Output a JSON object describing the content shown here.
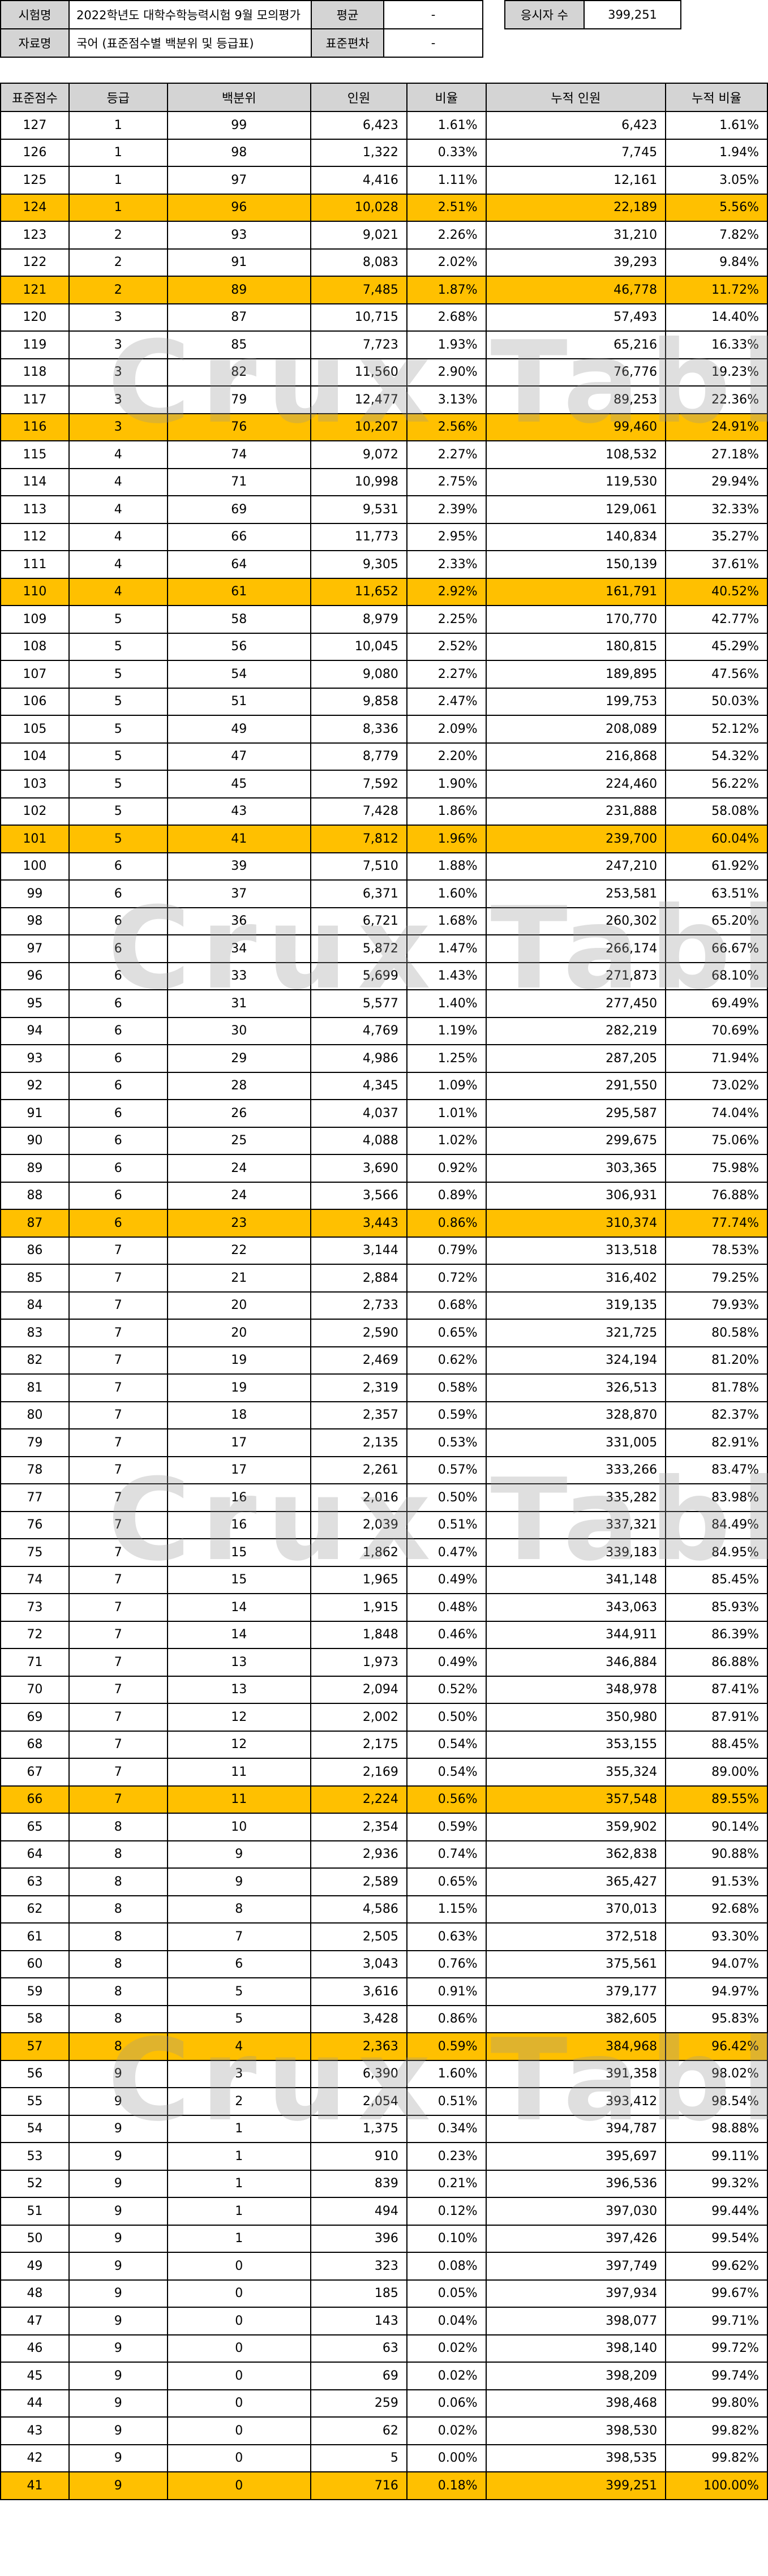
{
  "info": {
    "exam_label": "시험명",
    "exam_name": "2022학년도 대학수학능력시험 9월 모의평가",
    "mean_label": "평균",
    "mean_value": "-",
    "examinees_label": "응시자 수",
    "examinees_value": "399,251",
    "data_label": "자료명",
    "data_name": "국어 (표준점수별 백분위 및 등급표)",
    "sd_label": "표준편차",
    "sd_value": "-"
  },
  "table": {
    "headers": [
      "표준점수",
      "등급",
      "백분위",
      "인원",
      "비율",
      "누적 인원",
      "누적 비율"
    ],
    "rows": [
      {
        "s": "127",
        "g": "1",
        "p": "99",
        "n": "6,423",
        "r": "1.61%",
        "cn": "6,423",
        "cr": "1.61%",
        "hl": false
      },
      {
        "s": "126",
        "g": "1",
        "p": "98",
        "n": "1,322",
        "r": "0.33%",
        "cn": "7,745",
        "cr": "1.94%",
        "hl": false
      },
      {
        "s": "125",
        "g": "1",
        "p": "97",
        "n": "4,416",
        "r": "1.11%",
        "cn": "12,161",
        "cr": "3.05%",
        "hl": false
      },
      {
        "s": "124",
        "g": "1",
        "p": "96",
        "n": "10,028",
        "r": "2.51%",
        "cn": "22,189",
        "cr": "5.56%",
        "hl": true
      },
      {
        "s": "123",
        "g": "2",
        "p": "93",
        "n": "9,021",
        "r": "2.26%",
        "cn": "31,210",
        "cr": "7.82%",
        "hl": false
      },
      {
        "s": "122",
        "g": "2",
        "p": "91",
        "n": "8,083",
        "r": "2.02%",
        "cn": "39,293",
        "cr": "9.84%",
        "hl": false
      },
      {
        "s": "121",
        "g": "2",
        "p": "89",
        "n": "7,485",
        "r": "1.87%",
        "cn": "46,778",
        "cr": "11.72%",
        "hl": true
      },
      {
        "s": "120",
        "g": "3",
        "p": "87",
        "n": "10,715",
        "r": "2.68%",
        "cn": "57,493",
        "cr": "14.40%",
        "hl": false
      },
      {
        "s": "119",
        "g": "3",
        "p": "85",
        "n": "7,723",
        "r": "1.93%",
        "cn": "65,216",
        "cr": "16.33%",
        "hl": false
      },
      {
        "s": "118",
        "g": "3",
        "p": "82",
        "n": "11,560",
        "r": "2.90%",
        "cn": "76,776",
        "cr": "19.23%",
        "hl": false
      },
      {
        "s": "117",
        "g": "3",
        "p": "79",
        "n": "12,477",
        "r": "3.13%",
        "cn": "89,253",
        "cr": "22.36%",
        "hl": false
      },
      {
        "s": "116",
        "g": "3",
        "p": "76",
        "n": "10,207",
        "r": "2.56%",
        "cn": "99,460",
        "cr": "24.91%",
        "hl": true
      },
      {
        "s": "115",
        "g": "4",
        "p": "74",
        "n": "9,072",
        "r": "2.27%",
        "cn": "108,532",
        "cr": "27.18%",
        "hl": false
      },
      {
        "s": "114",
        "g": "4",
        "p": "71",
        "n": "10,998",
        "r": "2.75%",
        "cn": "119,530",
        "cr": "29.94%",
        "hl": false
      },
      {
        "s": "113",
        "g": "4",
        "p": "69",
        "n": "9,531",
        "r": "2.39%",
        "cn": "129,061",
        "cr": "32.33%",
        "hl": false
      },
      {
        "s": "112",
        "g": "4",
        "p": "66",
        "n": "11,773",
        "r": "2.95%",
        "cn": "140,834",
        "cr": "35.27%",
        "hl": false
      },
      {
        "s": "111",
        "g": "4",
        "p": "64",
        "n": "9,305",
        "r": "2.33%",
        "cn": "150,139",
        "cr": "37.61%",
        "hl": false
      },
      {
        "s": "110",
        "g": "4",
        "p": "61",
        "n": "11,652",
        "r": "2.92%",
        "cn": "161,791",
        "cr": "40.52%",
        "hl": true
      },
      {
        "s": "109",
        "g": "5",
        "p": "58",
        "n": "8,979",
        "r": "2.25%",
        "cn": "170,770",
        "cr": "42.77%",
        "hl": false
      },
      {
        "s": "108",
        "g": "5",
        "p": "56",
        "n": "10,045",
        "r": "2.52%",
        "cn": "180,815",
        "cr": "45.29%",
        "hl": false
      },
      {
        "s": "107",
        "g": "5",
        "p": "54",
        "n": "9,080",
        "r": "2.27%",
        "cn": "189,895",
        "cr": "47.56%",
        "hl": false
      },
      {
        "s": "106",
        "g": "5",
        "p": "51",
        "n": "9,858",
        "r": "2.47%",
        "cn": "199,753",
        "cr": "50.03%",
        "hl": false
      },
      {
        "s": "105",
        "g": "5",
        "p": "49",
        "n": "8,336",
        "r": "2.09%",
        "cn": "208,089",
        "cr": "52.12%",
        "hl": false
      },
      {
        "s": "104",
        "g": "5",
        "p": "47",
        "n": "8,779",
        "r": "2.20%",
        "cn": "216,868",
        "cr": "54.32%",
        "hl": false
      },
      {
        "s": "103",
        "g": "5",
        "p": "45",
        "n": "7,592",
        "r": "1.90%",
        "cn": "224,460",
        "cr": "56.22%",
        "hl": false
      },
      {
        "s": "102",
        "g": "5",
        "p": "43",
        "n": "7,428",
        "r": "1.86%",
        "cn": "231,888",
        "cr": "58.08%",
        "hl": false
      },
      {
        "s": "101",
        "g": "5",
        "p": "41",
        "n": "7,812",
        "r": "1.96%",
        "cn": "239,700",
        "cr": "60.04%",
        "hl": true
      },
      {
        "s": "100",
        "g": "6",
        "p": "39",
        "n": "7,510",
        "r": "1.88%",
        "cn": "247,210",
        "cr": "61.92%",
        "hl": false
      },
      {
        "s": "99",
        "g": "6",
        "p": "37",
        "n": "6,371",
        "r": "1.60%",
        "cn": "253,581",
        "cr": "63.51%",
        "hl": false
      },
      {
        "s": "98",
        "g": "6",
        "p": "36",
        "n": "6,721",
        "r": "1.68%",
        "cn": "260,302",
        "cr": "65.20%",
        "hl": false
      },
      {
        "s": "97",
        "g": "6",
        "p": "34",
        "n": "5,872",
        "r": "1.47%",
        "cn": "266,174",
        "cr": "66.67%",
        "hl": false
      },
      {
        "s": "96",
        "g": "6",
        "p": "33",
        "n": "5,699",
        "r": "1.43%",
        "cn": "271,873",
        "cr": "68.10%",
        "hl": false
      },
      {
        "s": "95",
        "g": "6",
        "p": "31",
        "n": "5,577",
        "r": "1.40%",
        "cn": "277,450",
        "cr": "69.49%",
        "hl": false
      },
      {
        "s": "94",
        "g": "6",
        "p": "30",
        "n": "4,769",
        "r": "1.19%",
        "cn": "282,219",
        "cr": "70.69%",
        "hl": false
      },
      {
        "s": "93",
        "g": "6",
        "p": "29",
        "n": "4,986",
        "r": "1.25%",
        "cn": "287,205",
        "cr": "71.94%",
        "hl": false
      },
      {
        "s": "92",
        "g": "6",
        "p": "28",
        "n": "4,345",
        "r": "1.09%",
        "cn": "291,550",
        "cr": "73.02%",
        "hl": false
      },
      {
        "s": "91",
        "g": "6",
        "p": "26",
        "n": "4,037",
        "r": "1.01%",
        "cn": "295,587",
        "cr": "74.04%",
        "hl": false
      },
      {
        "s": "90",
        "g": "6",
        "p": "25",
        "n": "4,088",
        "r": "1.02%",
        "cn": "299,675",
        "cr": "75.06%",
        "hl": false
      },
      {
        "s": "89",
        "g": "6",
        "p": "24",
        "n": "3,690",
        "r": "0.92%",
        "cn": "303,365",
        "cr": "75.98%",
        "hl": false
      },
      {
        "s": "88",
        "g": "6",
        "p": "24",
        "n": "3,566",
        "r": "0.89%",
        "cn": "306,931",
        "cr": "76.88%",
        "hl": false
      },
      {
        "s": "87",
        "g": "6",
        "p": "23",
        "n": "3,443",
        "r": "0.86%",
        "cn": "310,374",
        "cr": "77.74%",
        "hl": true
      },
      {
        "s": "86",
        "g": "7",
        "p": "22",
        "n": "3,144",
        "r": "0.79%",
        "cn": "313,518",
        "cr": "78.53%",
        "hl": false
      },
      {
        "s": "85",
        "g": "7",
        "p": "21",
        "n": "2,884",
        "r": "0.72%",
        "cn": "316,402",
        "cr": "79.25%",
        "hl": false
      },
      {
        "s": "84",
        "g": "7",
        "p": "20",
        "n": "2,733",
        "r": "0.68%",
        "cn": "319,135",
        "cr": "79.93%",
        "hl": false
      },
      {
        "s": "83",
        "g": "7",
        "p": "20",
        "n": "2,590",
        "r": "0.65%",
        "cn": "321,725",
        "cr": "80.58%",
        "hl": false
      },
      {
        "s": "82",
        "g": "7",
        "p": "19",
        "n": "2,469",
        "r": "0.62%",
        "cn": "324,194",
        "cr": "81.20%",
        "hl": false
      },
      {
        "s": "81",
        "g": "7",
        "p": "19",
        "n": "2,319",
        "r": "0.58%",
        "cn": "326,513",
        "cr": "81.78%",
        "hl": false
      },
      {
        "s": "80",
        "g": "7",
        "p": "18",
        "n": "2,357",
        "r": "0.59%",
        "cn": "328,870",
        "cr": "82.37%",
        "hl": false
      },
      {
        "s": "79",
        "g": "7",
        "p": "17",
        "n": "2,135",
        "r": "0.53%",
        "cn": "331,005",
        "cr": "82.91%",
        "hl": false
      },
      {
        "s": "78",
        "g": "7",
        "p": "17",
        "n": "2,261",
        "r": "0.57%",
        "cn": "333,266",
        "cr": "83.47%",
        "hl": false
      },
      {
        "s": "77",
        "g": "7",
        "p": "16",
        "n": "2,016",
        "r": "0.50%",
        "cn": "335,282",
        "cr": "83.98%",
        "hl": false
      },
      {
        "s": "76",
        "g": "7",
        "p": "16",
        "n": "2,039",
        "r": "0.51%",
        "cn": "337,321",
        "cr": "84.49%",
        "hl": false
      },
      {
        "s": "75",
        "g": "7",
        "p": "15",
        "n": "1,862",
        "r": "0.47%",
        "cn": "339,183",
        "cr": "84.95%",
        "hl": false
      },
      {
        "s": "74",
        "g": "7",
        "p": "15",
        "n": "1,965",
        "r": "0.49%",
        "cn": "341,148",
        "cr": "85.45%",
        "hl": false
      },
      {
        "s": "73",
        "g": "7",
        "p": "14",
        "n": "1,915",
        "r": "0.48%",
        "cn": "343,063",
        "cr": "85.93%",
        "hl": false
      },
      {
        "s": "72",
        "g": "7",
        "p": "14",
        "n": "1,848",
        "r": "0.46%",
        "cn": "344,911",
        "cr": "86.39%",
        "hl": false
      },
      {
        "s": "71",
        "g": "7",
        "p": "13",
        "n": "1,973",
        "r": "0.49%",
        "cn": "346,884",
        "cr": "86.88%",
        "hl": false
      },
      {
        "s": "70",
        "g": "7",
        "p": "13",
        "n": "2,094",
        "r": "0.52%",
        "cn": "348,978",
        "cr": "87.41%",
        "hl": false
      },
      {
        "s": "69",
        "g": "7",
        "p": "12",
        "n": "2,002",
        "r": "0.50%",
        "cn": "350,980",
        "cr": "87.91%",
        "hl": false
      },
      {
        "s": "68",
        "g": "7",
        "p": "12",
        "n": "2,175",
        "r": "0.54%",
        "cn": "353,155",
        "cr": "88.45%",
        "hl": false
      },
      {
        "s": "67",
        "g": "7",
        "p": "11",
        "n": "2,169",
        "r": "0.54%",
        "cn": "355,324",
        "cr": "89.00%",
        "hl": false
      },
      {
        "s": "66",
        "g": "7",
        "p": "11",
        "n": "2,224",
        "r": "0.56%",
        "cn": "357,548",
        "cr": "89.55%",
        "hl": true
      },
      {
        "s": "65",
        "g": "8",
        "p": "10",
        "n": "2,354",
        "r": "0.59%",
        "cn": "359,902",
        "cr": "90.14%",
        "hl": false
      },
      {
        "s": "64",
        "g": "8",
        "p": "9",
        "n": "2,936",
        "r": "0.74%",
        "cn": "362,838",
        "cr": "90.88%",
        "hl": false
      },
      {
        "s": "63",
        "g": "8",
        "p": "9",
        "n": "2,589",
        "r": "0.65%",
        "cn": "365,427",
        "cr": "91.53%",
        "hl": false
      },
      {
        "s": "62",
        "g": "8",
        "p": "8",
        "n": "4,586",
        "r": "1.15%",
        "cn": "370,013",
        "cr": "92.68%",
        "hl": false
      },
      {
        "s": "61",
        "g": "8",
        "p": "7",
        "n": "2,505",
        "r": "0.63%",
        "cn": "372,518",
        "cr": "93.30%",
        "hl": false
      },
      {
        "s": "60",
        "g": "8",
        "p": "6",
        "n": "3,043",
        "r": "0.76%",
        "cn": "375,561",
        "cr": "94.07%",
        "hl": false
      },
      {
        "s": "59",
        "g": "8",
        "p": "5",
        "n": "3,616",
        "r": "0.91%",
        "cn": "379,177",
        "cr": "94.97%",
        "hl": false
      },
      {
        "s": "58",
        "g": "8",
        "p": "5",
        "n": "3,428",
        "r": "0.86%",
        "cn": "382,605",
        "cr": "95.83%",
        "hl": false
      },
      {
        "s": "57",
        "g": "8",
        "p": "4",
        "n": "2,363",
        "r": "0.59%",
        "cn": "384,968",
        "cr": "96.42%",
        "hl": true
      },
      {
        "s": "56",
        "g": "9",
        "p": "3",
        "n": "6,390",
        "r": "1.60%",
        "cn": "391,358",
        "cr": "98.02%",
        "hl": false
      },
      {
        "s": "55",
        "g": "9",
        "p": "2",
        "n": "2,054",
        "r": "0.51%",
        "cn": "393,412",
        "cr": "98.54%",
        "hl": false
      },
      {
        "s": "54",
        "g": "9",
        "p": "1",
        "n": "1,375",
        "r": "0.34%",
        "cn": "394,787",
        "cr": "98.88%",
        "hl": false
      },
      {
        "s": "53",
        "g": "9",
        "p": "1",
        "n": "910",
        "r": "0.23%",
        "cn": "395,697",
        "cr": "99.11%",
        "hl": false
      },
      {
        "s": "52",
        "g": "9",
        "p": "1",
        "n": "839",
        "r": "0.21%",
        "cn": "396,536",
        "cr": "99.32%",
        "hl": false
      },
      {
        "s": "51",
        "g": "9",
        "p": "1",
        "n": "494",
        "r": "0.12%",
        "cn": "397,030",
        "cr": "99.44%",
        "hl": false
      },
      {
        "s": "50",
        "g": "9",
        "p": "1",
        "n": "396",
        "r": "0.10%",
        "cn": "397,426",
        "cr": "99.54%",
        "hl": false
      },
      {
        "s": "49",
        "g": "9",
        "p": "0",
        "n": "323",
        "r": "0.08%",
        "cn": "397,749",
        "cr": "99.62%",
        "hl": false
      },
      {
        "s": "48",
        "g": "9",
        "p": "0",
        "n": "185",
        "r": "0.05%",
        "cn": "397,934",
        "cr": "99.67%",
        "hl": false
      },
      {
        "s": "47",
        "g": "9",
        "p": "0",
        "n": "143",
        "r": "0.04%",
        "cn": "398,077",
        "cr": "99.71%",
        "hl": false
      },
      {
        "s": "46",
        "g": "9",
        "p": "0",
        "n": "63",
        "r": "0.02%",
        "cn": "398,140",
        "cr": "99.72%",
        "hl": false
      },
      {
        "s": "45",
        "g": "9",
        "p": "0",
        "n": "69",
        "r": "0.02%",
        "cn": "398,209",
        "cr": "99.74%",
        "hl": false
      },
      {
        "s": "44",
        "g": "9",
        "p": "0",
        "n": "259",
        "r": "0.06%",
        "cn": "398,468",
        "cr": "99.80%",
        "hl": false
      },
      {
        "s": "43",
        "g": "9",
        "p": "0",
        "n": "62",
        "r": "0.02%",
        "cn": "398,530",
        "cr": "99.82%",
        "hl": false
      },
      {
        "s": "42",
        "g": "9",
        "p": "0",
        "n": "5",
        "r": "0.00%",
        "cn": "398,535",
        "cr": "99.82%",
        "hl": false
      },
      {
        "s": "41",
        "g": "9",
        "p": "0",
        "n": "716",
        "r": "0.18%",
        "cn": "399,251",
        "cr": "100.00%",
        "hl": true
      }
    ]
  },
  "watermark": "Crux Table",
  "colors": {
    "header_bg": "#d4d4d4",
    "highlight": "#ffc000",
    "watermark": "#969696"
  }
}
